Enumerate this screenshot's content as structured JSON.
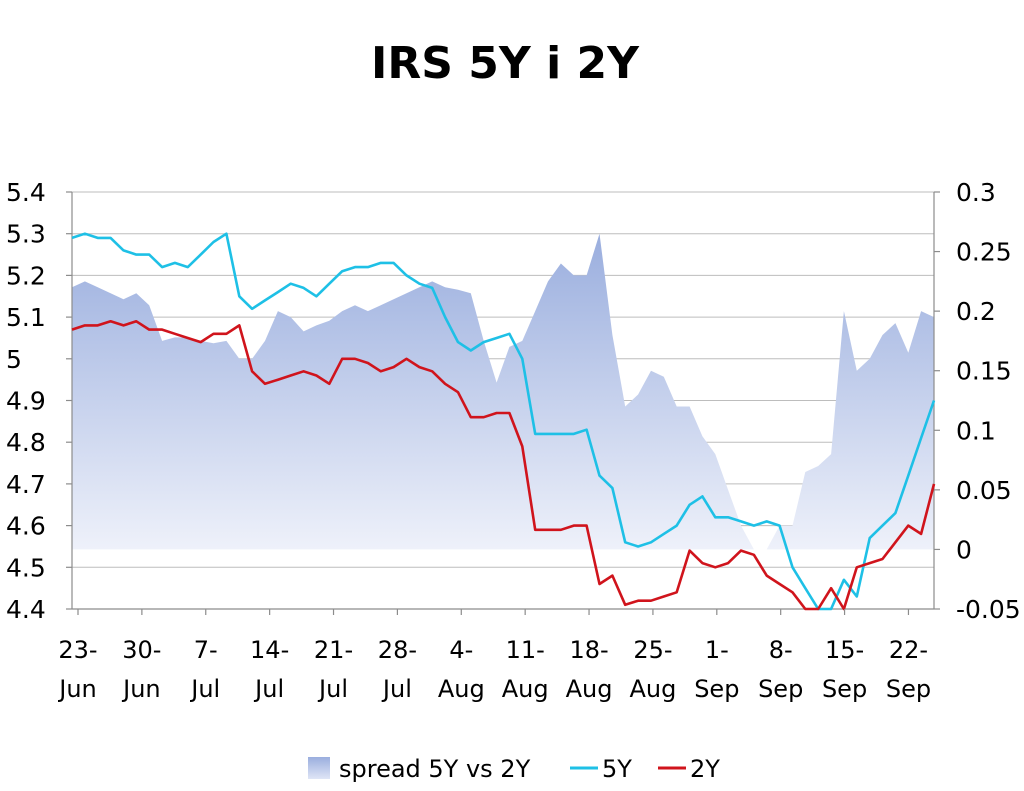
{
  "chart_data": {
    "type": "line",
    "title": "IRS 5Y i 2Y",
    "categories": [
      "23-Jun",
      "30-Jun",
      "7-Jul",
      "14-Jul",
      "21-Jul",
      "28-Jul",
      "4-Aug",
      "11-Aug",
      "18-Aug",
      "25-Aug",
      "1-Sep",
      "8-Sep",
      "15-Sep",
      "22-Sep"
    ],
    "x_tick_lines": [
      [
        "23-",
        "Jun"
      ],
      [
        "30-",
        "Jun"
      ],
      [
        "7-",
        "Jul"
      ],
      [
        "14-",
        "Jul"
      ],
      [
        "21-",
        "Jul"
      ],
      [
        "28-",
        "Jul"
      ],
      [
        "4-",
        "Aug"
      ],
      [
        "11-",
        "Aug"
      ],
      [
        "18-",
        "Aug"
      ],
      [
        "25-",
        "Aug"
      ],
      [
        "1-",
        "Sep"
      ],
      [
        "8-",
        "Sep"
      ],
      [
        "15-",
        "Sep"
      ],
      [
        "22-",
        "Sep"
      ]
    ],
    "y_left": {
      "range": [
        4.4,
        5.4
      ],
      "ticks": [
        "4.4",
        "4.5",
        "4.6",
        "4.7",
        "4.8",
        "4.9",
        "5",
        "5.1",
        "5.2",
        "5.3",
        "5.4"
      ]
    },
    "y_right": {
      "range": [
        -0.05,
        0.3
      ],
      "ticks": [
        "-0.05",
        "0",
        "0.05",
        "0.1",
        "0.15",
        "0.2",
        "0.25",
        "0.3"
      ]
    },
    "grid": true,
    "legend_position": "bottom",
    "legend": [
      "spread 5Y vs 2Y",
      "5Y",
      "2Y"
    ],
    "series": [
      {
        "name": "spread 5Y vs 2Y",
        "type": "area",
        "axis": "right",
        "color": "#a4b5e0",
        "points": [
          [
            0,
            0.22
          ],
          [
            1,
            0.225
          ],
          [
            2,
            0.22
          ],
          [
            3,
            0.215
          ],
          [
            4,
            0.21
          ],
          [
            5,
            0.215
          ],
          [
            6,
            0.205
          ],
          [
            7,
            0.175
          ],
          [
            8,
            0.178
          ],
          [
            9,
            0.178
          ],
          [
            10,
            0.175
          ],
          [
            11,
            0.173
          ],
          [
            12,
            0.175
          ],
          [
            13,
            0.16
          ],
          [
            14,
            0.16
          ],
          [
            15,
            0.175
          ],
          [
            16,
            0.2
          ],
          [
            17,
            0.195
          ],
          [
            18,
            0.183
          ],
          [
            19,
            0.188
          ],
          [
            20,
            0.192
          ],
          [
            21,
            0.2
          ],
          [
            22,
            0.205
          ],
          [
            23,
            0.2
          ],
          [
            24,
            0.205
          ],
          [
            25,
            0.21
          ],
          [
            26,
            0.215
          ],
          [
            27,
            0.22
          ],
          [
            28,
            0.225
          ],
          [
            29,
            0.22
          ],
          [
            30,
            0.218
          ],
          [
            31,
            0.215
          ],
          [
            32,
            0.175
          ],
          [
            33,
            0.14
          ],
          [
            34,
            0.17
          ],
          [
            35,
            0.175
          ],
          [
            36,
            0.2
          ],
          [
            37,
            0.225
          ],
          [
            38,
            0.24
          ],
          [
            39,
            0.23
          ],
          [
            40,
            0.23
          ],
          [
            41,
            0.265
          ],
          [
            42,
            0.18
          ],
          [
            43,
            0.12
          ],
          [
            44,
            0.13
          ],
          [
            45,
            0.15
          ],
          [
            46,
            0.145
          ],
          [
            47,
            0.12
          ],
          [
            48,
            0.12
          ],
          [
            49,
            0.095
          ],
          [
            50,
            0.08
          ],
          [
            51,
            0.05
          ],
          [
            52,
            0.02
          ],
          [
            53,
            0
          ],
          [
            54,
            0
          ],
          [
            55,
            0.02
          ],
          [
            56,
            0.02
          ],
          [
            57,
            0.065
          ],
          [
            58,
            0.07
          ],
          [
            59,
            0.08
          ],
          [
            60,
            0.2
          ],
          [
            61,
            0.15
          ],
          [
            62,
            0.16
          ],
          [
            63,
            0.18
          ],
          [
            64,
            0.19
          ],
          [
            65,
            0.165
          ],
          [
            66,
            0.2
          ],
          [
            67,
            0.195
          ]
        ]
      },
      {
        "name": "5Y",
        "type": "line",
        "axis": "left",
        "color": "#1ec0e6",
        "points": [
          [
            0,
            5.29
          ],
          [
            1,
            5.3
          ],
          [
            2,
            5.29
          ],
          [
            3,
            5.29
          ],
          [
            4,
            5.26
          ],
          [
            5,
            5.25
          ],
          [
            6,
            5.25
          ],
          [
            7,
            5.22
          ],
          [
            8,
            5.23
          ],
          [
            9,
            5.22
          ],
          [
            10,
            5.25
          ],
          [
            11,
            5.28
          ],
          [
            12,
            5.3
          ],
          [
            13,
            5.15
          ],
          [
            14,
            5.12
          ],
          [
            15,
            5.14
          ],
          [
            16,
            5.16
          ],
          [
            17,
            5.18
          ],
          [
            18,
            5.17
          ],
          [
            19,
            5.15
          ],
          [
            20,
            5.18
          ],
          [
            21,
            5.21
          ],
          [
            22,
            5.22
          ],
          [
            23,
            5.22
          ],
          [
            24,
            5.23
          ],
          [
            25,
            5.23
          ],
          [
            26,
            5.2
          ],
          [
            27,
            5.18
          ],
          [
            28,
            5.17
          ],
          [
            29,
            5.1
          ],
          [
            30,
            5.04
          ],
          [
            31,
            5.02
          ],
          [
            32,
            5.04
          ],
          [
            33,
            5.05
          ],
          [
            34,
            5.06
          ],
          [
            35,
            5.0
          ],
          [
            36,
            4.82
          ],
          [
            37,
            4.82
          ],
          [
            38,
            4.82
          ],
          [
            39,
            4.82
          ],
          [
            40,
            4.83
          ],
          [
            41,
            4.72
          ],
          [
            42,
            4.69
          ],
          [
            43,
            4.56
          ],
          [
            44,
            4.55
          ],
          [
            45,
            4.56
          ],
          [
            46,
            4.58
          ],
          [
            47,
            4.6
          ],
          [
            48,
            4.65
          ],
          [
            49,
            4.67
          ],
          [
            50,
            4.62
          ],
          [
            51,
            4.62
          ],
          [
            52,
            4.61
          ],
          [
            53,
            4.6
          ],
          [
            54,
            4.61
          ],
          [
            55,
            4.6
          ],
          [
            56,
            4.5
          ],
          [
            57,
            4.45
          ],
          [
            58,
            4.4
          ],
          [
            59,
            4.39
          ],
          [
            60,
            4.47
          ],
          [
            61,
            4.43
          ],
          [
            62,
            4.57
          ],
          [
            63,
            4.6
          ],
          [
            64,
            4.63
          ],
          [
            65,
            4.72
          ],
          [
            66,
            4.81
          ],
          [
            67,
            4.9
          ]
        ]
      },
      {
        "name": "2Y",
        "type": "line",
        "axis": "left",
        "color": "#d0141c",
        "points": [
          [
            0,
            5.07
          ],
          [
            1,
            5.08
          ],
          [
            2,
            5.08
          ],
          [
            3,
            5.09
          ],
          [
            4,
            5.08
          ],
          [
            5,
            5.09
          ],
          [
            6,
            5.07
          ],
          [
            7,
            5.07
          ],
          [
            8,
            5.06
          ],
          [
            9,
            5.05
          ],
          [
            10,
            5.04
          ],
          [
            11,
            5.06
          ],
          [
            12,
            5.06
          ],
          [
            13,
            5.08
          ],
          [
            14,
            4.97
          ],
          [
            15,
            4.94
          ],
          [
            16,
            4.95
          ],
          [
            17,
            4.96
          ],
          [
            18,
            4.97
          ],
          [
            19,
            4.96
          ],
          [
            20,
            4.94
          ],
          [
            21,
            5.0
          ],
          [
            22,
            5.0
          ],
          [
            23,
            4.99
          ],
          [
            24,
            4.97
          ],
          [
            25,
            4.98
          ],
          [
            26,
            5.0
          ],
          [
            27,
            4.98
          ],
          [
            28,
            4.97
          ],
          [
            29,
            4.94
          ],
          [
            30,
            4.92
          ],
          [
            31,
            4.86
          ],
          [
            32,
            4.86
          ],
          [
            33,
            4.87
          ],
          [
            34,
            4.87
          ],
          [
            35,
            4.79
          ],
          [
            36,
            4.59
          ],
          [
            37,
            4.59
          ],
          [
            38,
            4.59
          ],
          [
            39,
            4.6
          ],
          [
            40,
            4.6
          ],
          [
            41,
            4.46
          ],
          [
            42,
            4.48
          ],
          [
            43,
            4.41
          ],
          [
            44,
            4.42
          ],
          [
            45,
            4.42
          ],
          [
            46,
            4.43
          ],
          [
            47,
            4.44
          ],
          [
            48,
            4.54
          ],
          [
            49,
            4.51
          ],
          [
            50,
            4.5
          ],
          [
            51,
            4.51
          ],
          [
            52,
            4.54
          ],
          [
            53,
            4.53
          ],
          [
            54,
            4.48
          ],
          [
            55,
            4.46
          ],
          [
            56,
            4.44
          ],
          [
            57,
            4.38
          ],
          [
            58,
            4.38
          ],
          [
            59,
            4.45
          ],
          [
            60,
            4.4
          ],
          [
            61,
            4.5
          ],
          [
            62,
            4.51
          ],
          [
            63,
            4.52
          ],
          [
            64,
            4.56
          ],
          [
            65,
            4.6
          ],
          [
            66,
            4.58
          ],
          [
            67,
            4.7
          ]
        ]
      }
    ]
  }
}
